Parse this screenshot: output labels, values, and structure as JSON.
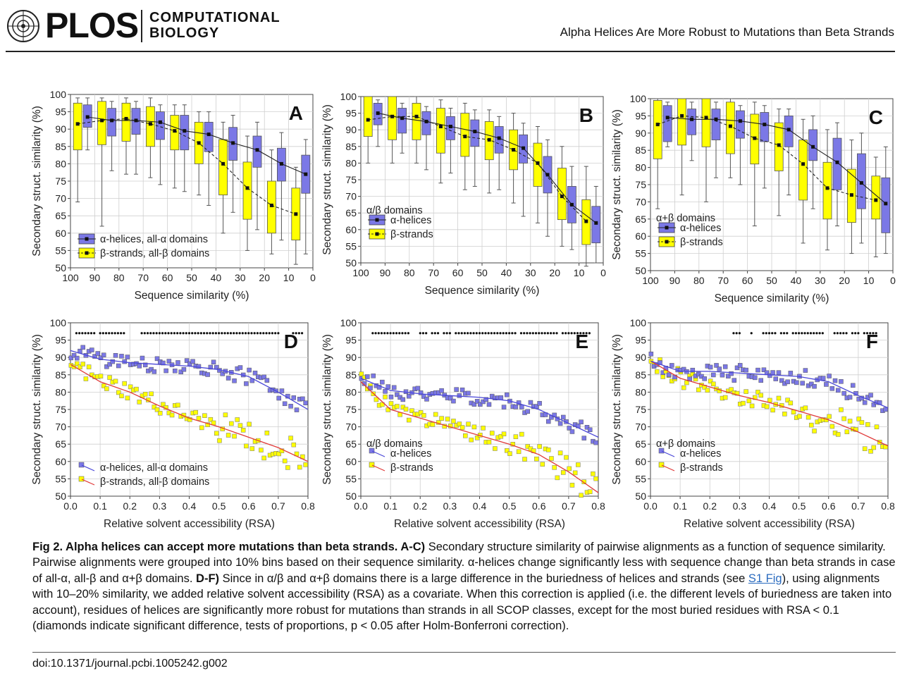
{
  "header": {
    "logo_text": "PLOS",
    "journal_line1": "COMPUTATIONAL",
    "journal_line2": "BIOLOGY",
    "running_title": "Alpha Helices Are More Robust to Mutations than Beta Strands"
  },
  "colors": {
    "helix": "#7b78e6",
    "strand": "#ffff00",
    "helix_line": "#4a47d8",
    "strand_line": "#e03a3a"
  },
  "chart_data": [
    {
      "panel": "A",
      "type": "box",
      "xlabel": "Sequence similarity (%)",
      "ylabel": "Secondary struct. similarity (%)",
      "xlim": [
        100,
        0
      ],
      "ylim": [
        50,
        100
      ],
      "legend": [
        "α-helices, all-α domains",
        "β-strands, all-β domains"
      ],
      "legend_title": "",
      "bins": [
        95,
        85,
        75,
        65,
        55,
        45,
        35,
        25,
        15,
        5
      ],
      "helix": [
        [
          84,
          90.5,
          93.5,
          97,
          99
        ],
        [
          78,
          88,
          92.5,
          96,
          98
        ],
        [
          77,
          88.5,
          92.5,
          96,
          98
        ],
        [
          74,
          87,
          92,
          95,
          97
        ],
        [
          72,
          84,
          89.5,
          94,
          97
        ],
        [
          68,
          83.5,
          88.5,
          92,
          95
        ],
        [
          66,
          81,
          86,
          90.5,
          94
        ],
        [
          61,
          79,
          84,
          88,
          92
        ],
        [
          58,
          75,
          80,
          84.5,
          89
        ],
        [
          54,
          71.5,
          77,
          82.5,
          87
        ]
      ],
      "strand": [
        [
          69,
          84,
          91.5,
          97.5,
          99
        ],
        [
          62,
          85.5,
          92.5,
          98,
          99
        ],
        [
          77,
          86.5,
          93,
          97.5,
          99
        ],
        [
          76,
          85,
          91.5,
          96.5,
          99
        ],
        [
          73,
          84,
          89.5,
          94,
          97
        ],
        [
          71,
          80,
          86,
          92,
          95
        ],
        [
          60,
          71,
          80,
          87,
          92
        ],
        [
          55,
          64,
          73,
          80.5,
          88
        ],
        [
          54,
          60,
          68,
          75,
          84
        ],
        [
          51,
          58,
          65.5,
          73,
          79
        ]
      ]
    },
    {
      "panel": "B",
      "type": "box",
      "xlabel": "Sequence similarity (%)",
      "ylabel": "Secondary struct. similarity (%)",
      "xlim": [
        100,
        0
      ],
      "ylim": [
        50,
        100
      ],
      "legend": [
        "α-helices",
        "β-strands"
      ],
      "legend_title": "α/β domains",
      "bins": [
        95,
        85,
        75,
        65,
        55,
        45,
        35,
        25,
        15,
        5
      ],
      "helix": [
        [
          85,
          91.5,
          95,
          98,
          99
        ],
        [
          83,
          89,
          93.5,
          96.5,
          98
        ],
        [
          78,
          88.5,
          92.5,
          95.5,
          97
        ],
        [
          77,
          87,
          91,
          94,
          96.5
        ],
        [
          73,
          85,
          89.5,
          93,
          96
        ],
        [
          72,
          83,
          87.5,
          91,
          94
        ],
        [
          64,
          80,
          84.5,
          88.5,
          92
        ],
        [
          58,
          71,
          76.5,
          82,
          87
        ],
        [
          54,
          62,
          67.5,
          73,
          79
        ],
        [
          50,
          56,
          62,
          67,
          73
        ]
      ],
      "strand": [
        [
          80,
          88,
          93,
          100,
          100
        ],
        [
          80,
          87,
          94,
          100,
          100
        ],
        [
          80,
          87,
          94,
          98,
          100
        ],
        [
          74,
          83,
          91,
          96.5,
          99
        ],
        [
          72,
          82,
          88,
          95,
          98
        ],
        [
          71,
          81,
          87,
          92.5,
          96
        ],
        [
          68,
          78,
          84,
          90,
          95
        ],
        [
          62,
          73,
          80,
          86,
          91
        ],
        [
          55,
          63,
          70,
          78.5,
          85
        ],
        [
          49,
          55.5,
          62.5,
          69,
          79
        ]
      ]
    },
    {
      "panel": "C",
      "type": "box",
      "xlabel": "Sequence similarity (%)",
      "ylabel": "Secondary struct. similarity (%)",
      "xlim": [
        100,
        0
      ],
      "ylim": [
        50,
        100
      ],
      "legend": [
        "α-helices",
        "β-strands"
      ],
      "legend_title": "α+β domains",
      "bins": [
        95,
        85,
        75,
        65,
        55,
        45,
        35,
        25,
        15,
        5
      ],
      "helix": [
        [
          86,
          87.5,
          94.5,
          98,
          99
        ],
        [
          82,
          89.5,
          94,
          97,
          99
        ],
        [
          77,
          88,
          94,
          97,
          99
        ],
        [
          75,
          88.5,
          93.5,
          96.5,
          98
        ],
        [
          74,
          87.5,
          92.5,
          96,
          98
        ],
        [
          72,
          86,
          91,
          95,
          97
        ],
        [
          68,
          82,
          86,
          91,
          95
        ],
        [
          63,
          73.5,
          81.5,
          88.5,
          93
        ],
        [
          58,
          68,
          75.5,
          84,
          90
        ],
        [
          55,
          61,
          69.5,
          77,
          86
        ]
      ],
      "strand": [
        [
          68,
          82.5,
          92.5,
          99.5,
          100
        ],
        [
          72,
          86.5,
          95,
          100,
          100
        ],
        [
          70,
          86,
          94.5,
          100,
          100
        ],
        [
          77,
          84,
          92,
          99,
          100
        ],
        [
          63,
          81,
          88.5,
          95.5,
          99
        ],
        [
          66,
          79,
          86.5,
          93,
          97
        ],
        [
          58,
          70.5,
          81,
          88,
          94
        ],
        [
          56,
          65,
          74,
          81.5,
          91
        ],
        [
          55,
          64,
          72,
          79.5,
          88
        ],
        [
          54,
          65,
          70.5,
          77.5,
          83
        ]
      ]
    },
    {
      "panel": "D",
      "type": "scatter",
      "xlabel": "Relative solvent accessibility (RSA)",
      "ylabel": "Secondary struct. similarity (%)",
      "xlim": [
        0,
        0.8
      ],
      "ylim": [
        50,
        100
      ],
      "legend": [
        "α-helices, all-α domains",
        "β-strands, all-β domains"
      ],
      "legend_title": "",
      "helix_fit": [
        [
          0,
          92
        ],
        [
          0.1,
          89.5
        ],
        [
          0.2,
          88.5
        ],
        [
          0.3,
          88
        ],
        [
          0.4,
          87.5
        ],
        [
          0.5,
          86.5
        ],
        [
          0.6,
          84.5
        ],
        [
          0.7,
          80
        ],
        [
          0.8,
          75
        ]
      ],
      "strand_fit": [
        [
          0,
          88
        ],
        [
          0.1,
          83
        ],
        [
          0.2,
          80
        ],
        [
          0.3,
          76
        ],
        [
          0.4,
          72.5
        ],
        [
          0.5,
          70
        ],
        [
          0.6,
          67
        ],
        [
          0.7,
          64
        ],
        [
          0.8,
          60
        ]
      ],
      "sig_ranges": [
        [
          0.02,
          0.08
        ],
        [
          0.1,
          0.18
        ],
        [
          0.24,
          0.7
        ],
        [
          0.75,
          0.78
        ]
      ]
    },
    {
      "panel": "E",
      "type": "scatter",
      "xlabel": "Relative solvent accessibility (RSA)",
      "ylabel": "Secondary struct. similarity (%)",
      "xlim": [
        0,
        0.8
      ],
      "ylim": [
        50,
        100
      ],
      "legend": [
        "α-helices",
        "β-strands"
      ],
      "legend_title": "α/β domains",
      "helix_fit": [
        [
          0,
          84
        ],
        [
          0.1,
          80.5
        ],
        [
          0.2,
          79.5
        ],
        [
          0.3,
          79
        ],
        [
          0.4,
          78.5
        ],
        [
          0.5,
          77.5
        ],
        [
          0.6,
          75
        ],
        [
          0.7,
          71
        ],
        [
          0.8,
          67
        ]
      ],
      "strand_fit": [
        [
          0,
          83
        ],
        [
          0.1,
          75
        ],
        [
          0.2,
          72.5
        ],
        [
          0.3,
          70
        ],
        [
          0.4,
          67.5
        ],
        [
          0.5,
          65
        ],
        [
          0.6,
          62
        ],
        [
          0.7,
          57
        ],
        [
          0.8,
          51
        ]
      ],
      "sig_ranges": [
        [
          0.04,
          0.16
        ],
        [
          0.2,
          0.22
        ],
        [
          0.24,
          0.26
        ],
        [
          0.28,
          0.3
        ],
        [
          0.32,
          0.52
        ],
        [
          0.54,
          0.66
        ],
        [
          0.68,
          0.77
        ]
      ]
    },
    {
      "panel": "F",
      "type": "scatter",
      "xlabel": "Relative solvent accessibility (RSA)",
      "ylabel": "Secondary struct. similarity (%)",
      "xlim": [
        0,
        0.8
      ],
      "ylim": [
        50,
        100
      ],
      "legend": [
        "α-helices",
        "β-strands"
      ],
      "legend_title": "α+β domains",
      "helix_fit": [
        [
          0,
          89
        ],
        [
          0.1,
          86
        ],
        [
          0.2,
          86
        ],
        [
          0.3,
          85.5
        ],
        [
          0.4,
          85
        ],
        [
          0.5,
          84.5
        ],
        [
          0.6,
          83
        ],
        [
          0.7,
          79
        ],
        [
          0.8,
          75.5
        ]
      ],
      "strand_fit": [
        [
          0,
          89
        ],
        [
          0.1,
          84
        ],
        [
          0.2,
          81.5
        ],
        [
          0.3,
          79
        ],
        [
          0.4,
          77
        ],
        [
          0.5,
          74.5
        ],
        [
          0.6,
          72
        ],
        [
          0.7,
          68.5
        ],
        [
          0.8,
          64.5
        ]
      ],
      "sig_ranges": [
        [
          0.28,
          0.3
        ],
        [
          0.34,
          0.34
        ],
        [
          0.38,
          0.42
        ],
        [
          0.44,
          0.46
        ],
        [
          0.48,
          0.52
        ],
        [
          0.53,
          0.58
        ],
        [
          0.62,
          0.66
        ],
        [
          0.68,
          0.7
        ],
        [
          0.72,
          0.73
        ],
        [
          0.74,
          0.76
        ]
      ]
    }
  ],
  "caption": {
    "label": "Fig 2. Alpha helices can accept more mutations than beta strands. A-C)",
    "text1": " Secondary structure similarity of pairwise alignments as a function of sequence similarity. Pairwise alignments were grouped into 10% bins based on their sequence similarity. α-helices change significantly less with sequence change than beta strands in case of all-α, all-β and α+β domains. ",
    "label2": "D-F)",
    "text2": " Since in α/β and α+β domains there is a large difference in the buriedness of helices and strands (see ",
    "link": "S1 Fig",
    "text3": "), using alignments with 10–20% similarity, we added relative solvent accessibility (RSA) as a covariate. When this correction is applied (i.e. the different levels of buriedness are taken into account), residues of helices are significantly more robust for mutations than strands in all SCOP classes, except for the most buried residues with RSA < 0.1 (diamonds indicate significant difference, tests of proportions, p < 0.05 after Holm-Bonferroni correction)."
  },
  "doi": "doi:10.1371/journal.pcbi.1005242.g002"
}
